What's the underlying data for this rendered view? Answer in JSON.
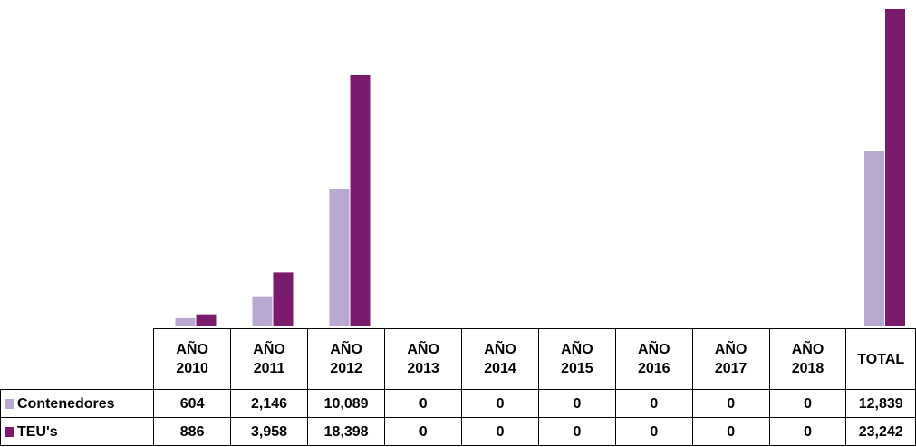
{
  "chart_data": {
    "type": "bar",
    "categories": [
      "AÑO\n2010",
      "AÑO\n2011",
      "AÑO\n2012",
      "AÑO\n2013",
      "AÑO\n2014",
      "AÑO\n2015",
      "AÑO\n2016",
      "AÑO\n2017",
      "AÑO\n2018",
      "TOTAL"
    ],
    "series": [
      {
        "name": "Contenedores",
        "color": "#b9a9d2",
        "values": [
          604,
          2146,
          10089,
          0,
          0,
          0,
          0,
          0,
          0,
          12839
        ],
        "value_labels": [
          "604",
          "2,146",
          "10,089",
          "0",
          "0",
          "0",
          "0",
          "0",
          "0",
          "12,839"
        ]
      },
      {
        "name": "TEU's",
        "color": "#7a1b6d",
        "values": [
          886,
          3958,
          18398,
          0,
          0,
          0,
          0,
          0,
          0,
          23242
        ],
        "value_labels": [
          "886",
          "3,958",
          "18,398",
          "0",
          "0",
          "0",
          "0",
          "0",
          "0",
          "23,242"
        ]
      }
    ]
  }
}
